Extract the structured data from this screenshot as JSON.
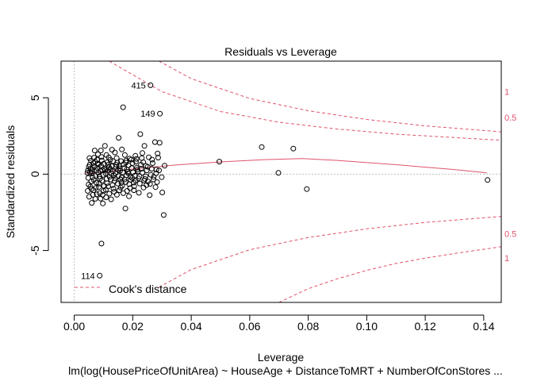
{
  "chart_data": {
    "type": "scatter",
    "title": "Residuals vs Leverage",
    "xlabel": "Leverage",
    "ylabel": "Standardized residuals",
    "subtitle": "lm(log(HousePriceOfUnitArea) ~ HouseAge + DistanceToMRT + NumberOfConStores ...",
    "xlim": [
      -0.0045,
      0.146
    ],
    "ylim": [
      -8.4,
      7.4
    ],
    "x_ticks": [
      0.0,
      0.02,
      0.04,
      0.06,
      0.08,
      0.1,
      0.12,
      0.14
    ],
    "x_tick_labels": [
      "0.00",
      "0.02",
      "0.04",
      "0.06",
      "0.08",
      "0.10",
      "0.12",
      "0.14"
    ],
    "y_ticks": [
      -5,
      0,
      5
    ],
    "y_tick_labels": [
      "-5",
      "0",
      "5"
    ],
    "grid": false,
    "reference_lines": {
      "h": 0,
      "v": 0,
      "color": "#BEBEBE"
    },
    "point_color": "#000000",
    "curve_color": "#DF536B",
    "legend": {
      "position": "bottom-left",
      "label": "Cook's distance"
    },
    "cook_contours": [
      {
        "label": "1",
        "upper": [
          [
            0.029,
            7.4
          ],
          [
            0.04,
            6.25
          ],
          [
            0.06,
            4.95
          ],
          [
            0.08,
            4.15
          ],
          [
            0.1,
            3.58
          ],
          [
            0.12,
            3.16
          ],
          [
            0.146,
            2.77
          ]
        ],
        "lower": [
          [
            0.029,
            -7.4
          ],
          [
            0.04,
            -6.25
          ],
          [
            0.06,
            -4.95
          ],
          [
            0.08,
            -4.15
          ],
          [
            0.1,
            -3.58
          ],
          [
            0.12,
            -3.16
          ],
          [
            0.146,
            -2.77
          ]
        ]
      },
      {
        "label": "0.5",
        "upper": [
          [
            0.012,
            7.4
          ],
          [
            0.03,
            5.4
          ],
          [
            0.05,
            4.1
          ],
          [
            0.07,
            3.4
          ],
          [
            0.09,
            2.95
          ],
          [
            0.11,
            2.62
          ],
          [
            0.146,
            2.22
          ]
        ],
        "lower": [
          [
            0.07,
            -8.4
          ],
          [
            0.08,
            -7.5
          ],
          [
            0.09,
            -6.85
          ],
          [
            0.1,
            -6.3
          ],
          [
            0.11,
            -5.85
          ],
          [
            0.12,
            -5.5
          ],
          [
            0.13,
            -5.2
          ],
          [
            0.146,
            -4.75
          ]
        ]
      }
    ],
    "contour_label_values": [
      {
        "label": "1",
        "y": 5.4
      },
      {
        "label": "0.5",
        "y": 3.7
      },
      {
        "label": "0.5",
        "y": -3.9
      },
      {
        "label": "1",
        "y": -5.5
      }
    ],
    "smooth_line": [
      [
        0.004,
        0.05
      ],
      [
        0.008,
        0.12
      ],
      [
        0.015,
        0.25
      ],
      [
        0.025,
        0.42
      ],
      [
        0.035,
        0.6
      ],
      [
        0.05,
        0.8
      ],
      [
        0.065,
        0.95
      ],
      [
        0.078,
        1.02
      ],
      [
        0.09,
        0.9
      ],
      [
        0.11,
        0.62
      ],
      [
        0.13,
        0.3
      ],
      [
        0.141,
        0.08
      ]
    ],
    "labeled_points": [
      {
        "label": "415",
        "x": 0.0261,
        "y": 5.82
      },
      {
        "label": "149",
        "x": 0.0293,
        "y": 3.96
      },
      {
        "label": "114",
        "x": 0.0087,
        "y": -6.65
      }
    ],
    "points": [
      [
        0.0261,
        5.82
      ],
      [
        0.0293,
        3.96
      ],
      [
        0.0087,
        -6.65
      ],
      [
        0.0167,
        4.38
      ],
      [
        0.0093,
        -4.55
      ],
      [
        0.0641,
        1.77
      ],
      [
        0.0749,
        1.67
      ],
      [
        0.0496,
        0.82
      ],
      [
        0.0698,
        0.08
      ],
      [
        0.0795,
        -0.98
      ],
      [
        0.1413,
        -0.38
      ],
      [
        0.0309,
        0.55
      ],
      [
        0.0306,
        -2.68
      ],
      [
        0.0292,
        2.05
      ],
      [
        0.0285,
        1.35
      ],
      [
        0.0281,
        0.3
      ],
      [
        0.0301,
        -1.2
      ],
      [
        0.0283,
        -0.52
      ],
      [
        0.0276,
        2.1
      ],
      [
        0.0226,
        2.62
      ],
      [
        0.0152,
        2.38
      ],
      [
        0.0233,
        1.38
      ],
      [
        0.0266,
        0.95
      ],
      [
        0.0271,
        -0.35
      ],
      [
        0.0258,
        -1.38
      ],
      [
        0.024,
        1.85
      ],
      [
        0.0245,
        0.55
      ],
      [
        0.0213,
        1.0
      ],
      [
        0.0205,
        -0.8
      ],
      [
        0.0196,
        0.4
      ],
      [
        0.0187,
        -1.45
      ],
      [
        0.0178,
        0.9
      ],
      [
        0.0175,
        -2.25
      ],
      [
        0.0163,
        1.62
      ],
      [
        0.0158,
        -0.35
      ],
      [
        0.0147,
        0.75
      ],
      [
        0.0139,
        1.42
      ],
      [
        0.0131,
        -0.72
      ],
      [
        0.0126,
        -1.65
      ],
      [
        0.0118,
        1.1
      ],
      [
        0.0111,
        -0.3
      ],
      [
        0.0105,
        1.85
      ],
      [
        0.0098,
        -1.92
      ],
      [
        0.0092,
        0.55
      ],
      [
        0.0087,
        -1.25
      ],
      [
        0.0081,
        1.3
      ],
      [
        0.0076,
        -0.55
      ],
      [
        0.0071,
        0.82
      ],
      [
        0.0066,
        -1.05
      ],
      [
        0.0062,
        0.32
      ],
      [
        0.0058,
        -0.48
      ],
      [
        0.0054,
        0.12
      ],
      [
        0.0051,
        -1.48
      ],
      [
        0.0048,
        -0.25
      ],
      [
        0.0045,
        0.08
      ],
      [
        0.0053,
        0.62
      ],
      [
        0.006,
        -1.88
      ],
      [
        0.0068,
        1.08
      ],
      [
        0.0073,
        -0.12
      ],
      [
        0.0079,
        0.42
      ],
      [
        0.0084,
        -0.85
      ],
      [
        0.0089,
        0.2
      ],
      [
        0.0095,
        -0.42
      ],
      [
        0.0101,
        0.68
      ],
      [
        0.0108,
        -1.02
      ],
      [
        0.0114,
        0.22
      ],
      [
        0.0121,
        -0.18
      ],
      [
        0.0128,
        0.52
      ],
      [
        0.0134,
        -0.95
      ],
      [
        0.0141,
        0.05
      ],
      [
        0.0149,
        -0.62
      ],
      [
        0.0156,
        0.38
      ],
      [
        0.0162,
        -0.22
      ],
      [
        0.0169,
        0.65
      ],
      [
        0.0176,
        -0.52
      ],
      [
        0.0183,
        0.15
      ],
      [
        0.0191,
        -0.92
      ],
      [
        0.0199,
        0.72
      ],
      [
        0.0207,
        -0.1
      ],
      [
        0.0216,
        0.3
      ],
      [
        0.0224,
        -0.62
      ],
      [
        0.0233,
        0.1
      ],
      [
        0.0242,
        -0.32
      ],
      [
        0.0251,
        0.48
      ],
      [
        0.0262,
        -0.05
      ],
      [
        0.0049,
        -0.68
      ],
      [
        0.0056,
        0.35
      ],
      [
        0.0063,
        -0.2
      ],
      [
        0.0069,
        0.5
      ],
      [
        0.0074,
        -0.9
      ],
      [
        0.0082,
        0.1
      ],
      [
        0.0088,
        -0.3
      ],
      [
        0.0094,
        0.9
      ],
      [
        0.0099,
        -0.05
      ],
      [
        0.0106,
        0.28
      ],
      [
        0.0112,
        -0.6
      ],
      [
        0.0119,
        0.45
      ],
      [
        0.0125,
        -0.35
      ],
      [
        0.0132,
        0.18
      ],
      [
        0.0138,
        -0.45
      ],
      [
        0.0145,
        1.05
      ],
      [
        0.0151,
        -0.12
      ],
      [
        0.0157,
        0.22
      ],
      [
        0.0164,
        -0.75
      ],
      [
        0.0171,
        0.4
      ],
      [
        0.0179,
        -0.08
      ],
      [
        0.0186,
        0.58
      ],
      [
        0.0193,
        -0.38
      ],
      [
        0.0201,
        0.12
      ],
      [
        0.0209,
        1.2
      ],
      [
        0.0219,
        -0.28
      ],
      [
        0.0228,
        0.62
      ],
      [
        0.0237,
        -0.88
      ],
      [
        0.0248,
        0.25
      ],
      [
        0.0255,
        1.1
      ],
      [
        0.0052,
        1.05
      ],
      [
        0.0059,
        -0.98
      ],
      [
        0.0065,
        0.72
      ],
      [
        0.0072,
        -1.62
      ],
      [
        0.0078,
        0.95
      ],
      [
        0.0085,
        -0.62
      ],
      [
        0.0091,
        1.55
      ],
      [
        0.0097,
        -1.35
      ],
      [
        0.0103,
        0.35
      ],
      [
        0.011,
        1.25
      ],
      [
        0.0116,
        -0.8
      ],
      [
        0.0123,
        0.95
      ],
      [
        0.0129,
        1.6
      ],
      [
        0.0136,
        -1.15
      ],
      [
        0.0143,
        0.48
      ],
      [
        0.0154,
        -1.05
      ],
      [
        0.016,
        0.85
      ],
      [
        0.0173,
        1.25
      ],
      [
        0.0181,
        -1.1
      ],
      [
        0.0189,
        1.02
      ],
      [
        0.0203,
        -0.55
      ],
      [
        0.0211,
        0.82
      ],
      [
        0.0221,
        -1.22
      ],
      [
        0.0231,
        1.05
      ],
      [
        0.0247,
        -0.72
      ],
      [
        0.0268,
        0.72
      ],
      [
        0.0278,
        -0.85
      ],
      [
        0.029,
        0.25
      ],
      [
        0.0299,
        -0.2
      ],
      [
        0.0287,
        1.08
      ],
      [
        0.0046,
        -1.1
      ],
      [
        0.005,
        0.48
      ],
      [
        0.0055,
        -0.82
      ],
      [
        0.0061,
        0.18
      ],
      [
        0.0067,
        -0.38
      ],
      [
        0.007,
        1.55
      ],
      [
        0.0077,
        -1.32
      ],
      [
        0.0083,
        0.62
      ],
      [
        0.009,
        -1.6
      ],
      [
        0.0096,
        0.28
      ],
      [
        0.0102,
        -0.78
      ],
      [
        0.0107,
        0.05
      ],
      [
        0.0113,
        0.78
      ],
      [
        0.012,
        -1.28
      ],
      [
        0.0127,
        0.02
      ],
      [
        0.0133,
        0.85
      ],
      [
        0.014,
        -0.28
      ],
      [
        0.0146,
        -1.35
      ],
      [
        0.0153,
        0.55
      ],
      [
        0.0159,
        -0.88
      ],
      [
        0.0166,
        0.12
      ],
      [
        0.0172,
        -0.35
      ],
      [
        0.018,
        0.3
      ],
      [
        0.0188,
        -0.65
      ],
      [
        0.0195,
        0.95
      ],
      [
        0.0204,
        -1.05
      ],
      [
        0.0214,
        0.42
      ],
      [
        0.0223,
        -0.15
      ],
      [
        0.0236,
        0.78
      ],
      [
        0.0252,
        -0.48
      ],
      [
        0.0057,
        0.88
      ],
      [
        0.0064,
        -1.35
      ],
      [
        0.0075,
        0.25
      ],
      [
        0.0086,
        -0.15
      ],
      [
        0.01,
        -1.1
      ],
      [
        0.0117,
        0.62
      ],
      [
        0.0135,
        -0.08
      ],
      [
        0.015,
        0.28
      ],
      [
        0.0168,
        -1.25
      ],
      [
        0.0185,
        0.05
      ],
      [
        0.0198,
        -0.25
      ],
      [
        0.0218,
        0.18
      ],
      [
        0.0239,
        -0.42
      ],
      [
        0.0265,
        0.35
      ],
      [
        0.0272,
        -0.18
      ],
      [
        0.0047,
        0.25
      ],
      [
        0.006,
        0.05
      ],
      [
        0.008,
        0.68
      ],
      [
        0.0093,
        1.12
      ],
      [
        0.0109,
        -1.52
      ],
      [
        0.0124,
        0.32
      ],
      [
        0.0144,
        0.62
      ],
      [
        0.0161,
        -0.55
      ],
      [
        0.0177,
        0.75
      ],
      [
        0.0192,
        -0.18
      ],
      [
        0.021,
        -0.42
      ],
      [
        0.0229,
        0.35
      ],
      [
        0.0244,
        -0.15
      ],
      [
        0.0259,
        -0.65
      ],
      [
        0.028,
        0.05
      ]
    ]
  }
}
